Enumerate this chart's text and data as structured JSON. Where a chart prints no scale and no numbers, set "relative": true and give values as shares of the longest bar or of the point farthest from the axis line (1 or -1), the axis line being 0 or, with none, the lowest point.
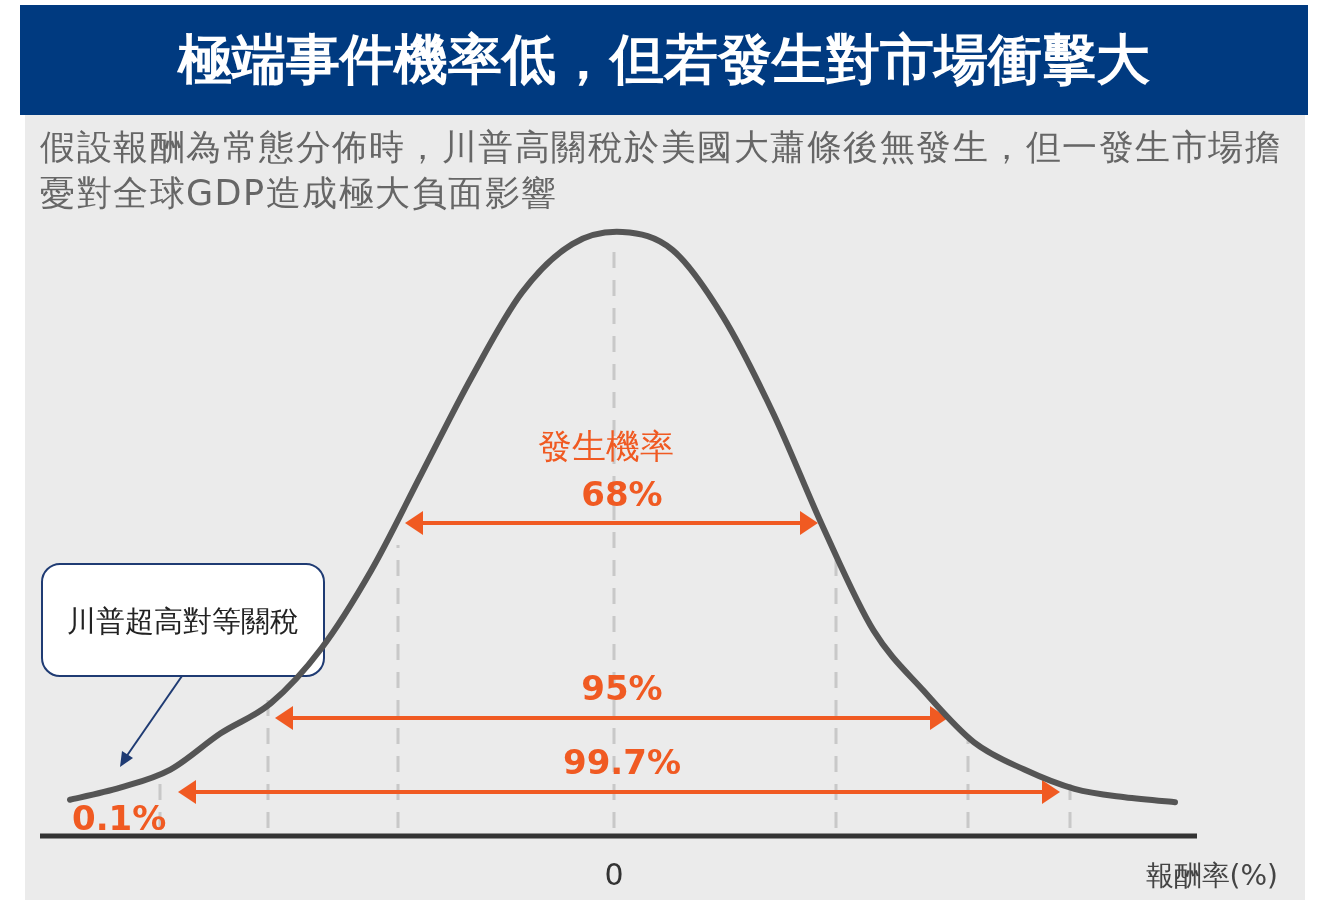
{
  "chart_data": {
    "type": "line",
    "title": "極端事件機率低，但若發生對市場衝擊大",
    "subtitle": "假設報酬為常態分佈時，川普高關稅於美國大蕭條後無發生，但一發生市場擔憂對全球GDP造成極大負面影響",
    "xlabel": "報酬率(%)",
    "relative": true,
    "categories": [
      null,
      null,
      null,
      null,
      null,
      null,
      null,
      null,
      null,
      null,
      null,
      null,
      null,
      null,
      null,
      null,
      null,
      null,
      null,
      null,
      null,
      null,
      null
    ],
    "series": [
      {
        "color": "#555555",
        "values": [
          0.06,
          0.08,
          0.11,
          0.17,
          0.22,
          0.31,
          0.44,
          0.6,
          0.76,
          0.9,
          0.98,
          1,
          0.97,
          0.86,
          0.7,
          0.51,
          0.34,
          0.24,
          0.155,
          0.11,
          0.078,
          0.064,
          0.056
        ]
      }
    ],
    "annotations": [
      "川普超高對等關稅",
      "發生機率",
      "68%",
      "95%",
      "99.7%",
      "0.1%",
      "0"
    ],
    "line_style": "solid"
  }
}
